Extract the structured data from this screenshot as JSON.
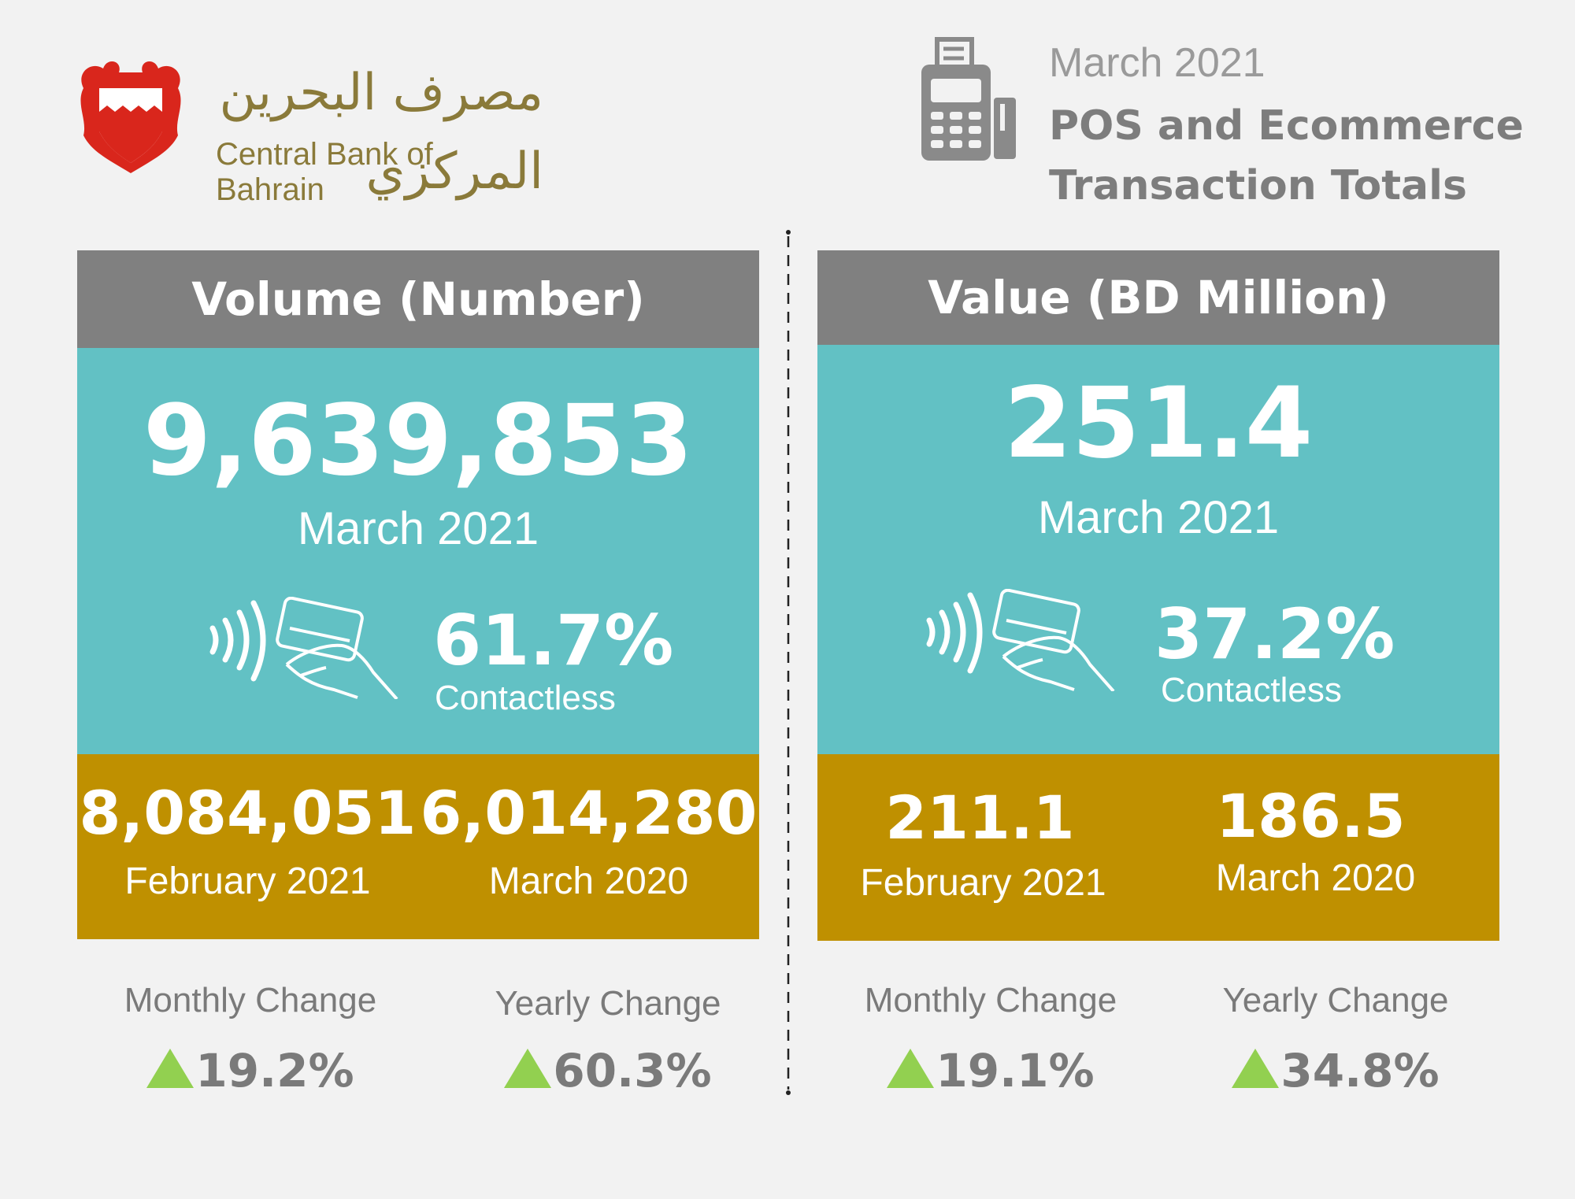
{
  "header": {
    "bank_name_arabic": "مصرف البحرين المركزي",
    "bank_name_english": "Central Bank of Bahrain",
    "month": "March 2021",
    "title": "POS and Ecommerce Transaction Totals",
    "icon": "pos-terminal-icon",
    "logo_icon": "bahrain-emblem-icon"
  },
  "colors": {
    "teal": "#62c1c4",
    "gold": "#bf9000",
    "gray_header": "#808080",
    "green_arrow": "#92d050"
  },
  "volume": {
    "title": "Volume (Number)",
    "current_value": "9,639,853",
    "current_label": "March 2021",
    "contactless_pct": "61.7%",
    "contactless_label": "Contactless",
    "prev_month_value": "8,084,051",
    "prev_month_label": "February 2021",
    "prev_year_value": "6,014,280",
    "prev_year_label": "March 2020",
    "monthly_change_label": "Monthly Change",
    "monthly_change_value": "19.2%",
    "yearly_change_label": "Yearly Change",
    "yearly_change_value": "60.3%"
  },
  "value": {
    "title": "Value (BD Million)",
    "current_value": "251.4",
    "current_label": "March 2021",
    "contactless_pct": "37.2%",
    "contactless_label": "Contactless",
    "prev_month_value": "211.1",
    "prev_month_label": "February 2021",
    "prev_year_value": "186.5",
    "prev_year_label": "March 2020",
    "monthly_change_label": "Monthly Change",
    "monthly_change_value": "19.1%",
    "yearly_change_label": "Yearly Change",
    "yearly_change_value": "34.8%"
  }
}
